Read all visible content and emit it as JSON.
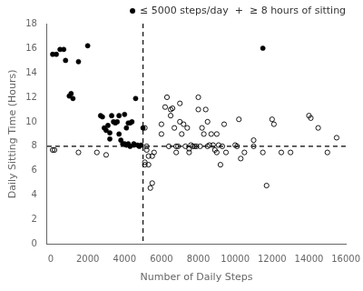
{
  "chart_data": {
    "type": "scatter",
    "xlabel": "Number of Daily Steps",
    "ylabel": "Daily Sitting Time (Hours)",
    "xlim": [
      -200,
      16000
    ],
    "ylim": [
      0,
      18
    ],
    "xticks": [
      0,
      2000,
      4000,
      6000,
      8000,
      10000,
      12000,
      14000,
      16000
    ],
    "yticks": [
      0,
      2,
      4,
      6,
      8,
      10,
      12,
      14,
      16,
      18
    ],
    "grid": false,
    "series": [
      {
        "color": "#000000",
        "marker": "circle",
        "x": [
          100,
          300,
          500,
          700,
          800,
          1000,
          1100,
          1200,
          1500,
          2000,
          2700,
          2800,
          2900,
          3000,
          3100,
          3200,
          3200,
          3300,
          3400,
          3500,
          3600,
          3700,
          3700,
          3800,
          3900,
          4000,
          4000,
          4100,
          4100,
          4200,
          4200,
          4300,
          4300,
          4400,
          4500,
          4500,
          4600,
          4700,
          4800,
          4900,
          5000,
          11500
        ],
        "values": [
          15.5,
          15.5,
          15.9,
          15.9,
          15.0,
          12.1,
          12.3,
          11.9,
          14.9,
          16.2,
          10.5,
          10.4,
          9.5,
          9.3,
          9.7,
          9.1,
          8.6,
          10.5,
          10.0,
          9.9,
          10.0,
          10.5,
          9.0,
          8.5,
          8.2,
          8.2,
          10.6,
          9.5,
          8.1,
          9.9,
          8.2,
          8.0,
          9.9,
          10.0,
          8.1,
          8.2,
          11.9,
          8.1,
          8.0,
          8.1,
          9.5,
          16.0
        ]
      },
      {
        "color": "#000000",
        "marker": "open_circle",
        "x": [
          100,
          200,
          1500,
          2500,
          3000,
          5100,
          5100,
          5100,
          5200,
          5200,
          5300,
          5300,
          5400,
          5500,
          5500,
          5600,
          6000,
          6000,
          6200,
          6300,
          6400,
          6500,
          6500,
          6600,
          6700,
          6800,
          6800,
          6900,
          7000,
          7000,
          7100,
          7200,
          7300,
          7400,
          7500,
          7500,
          7600,
          7700,
          7800,
          7900,
          8000,
          8000,
          8100,
          8200,
          8300,
          8400,
          8500,
          8500,
          8600,
          8700,
          8800,
          8900,
          9000,
          9000,
          9100,
          9200,
          9300,
          9400,
          9500,
          10000,
          10100,
          10200,
          10300,
          10500,
          11000,
          11000,
          11500,
          11700,
          12000,
          12100,
          12500,
          13000,
          14000,
          14100,
          14500,
          15000,
          15500
        ],
        "values": [
          7.7,
          7.7,
          7.5,
          7.5,
          7.3,
          9.5,
          6.7,
          6.5,
          8.0,
          7.7,
          7.2,
          6.5,
          4.6,
          7.2,
          5.0,
          7.5,
          9.8,
          9.0,
          11.2,
          12.0,
          8.0,
          11.0,
          10.5,
          11.1,
          9.5,
          8.0,
          7.5,
          8.0,
          11.5,
          10.0,
          9.0,
          9.8,
          8.0,
          9.5,
          7.8,
          7.5,
          8.1,
          8.0,
          8.0,
          8.0,
          12.0,
          11.0,
          8.0,
          9.5,
          9.0,
          11.0,
          10.0,
          8.0,
          8.1,
          9.0,
          8.1,
          7.7,
          9.0,
          7.5,
          8.1,
          6.5,
          8.0,
          9.8,
          7.5,
          8.1,
          8.0,
          10.2,
          7.0,
          7.5,
          8.5,
          8.0,
          7.5,
          4.8,
          10.2,
          9.8,
          7.5,
          7.5,
          10.5,
          10.3,
          9.5,
          7.5,
          8.7
        ]
      }
    ],
    "reference_lines": [
      {
        "axis": "x",
        "value": 5000,
        "color": "#000000",
        "line_style": "dashed"
      },
      {
        "axis": "y",
        "value": 8,
        "color": "#000000",
        "line_style": "dashed"
      }
    ],
    "annotations": [
      {
        "text": "≤ 5000 steps/day",
        "marker": "circle",
        "color": "#000000"
      },
      {
        "text": "+"
      },
      {
        "text": "≥ 8 hours of sitting"
      }
    ]
  }
}
